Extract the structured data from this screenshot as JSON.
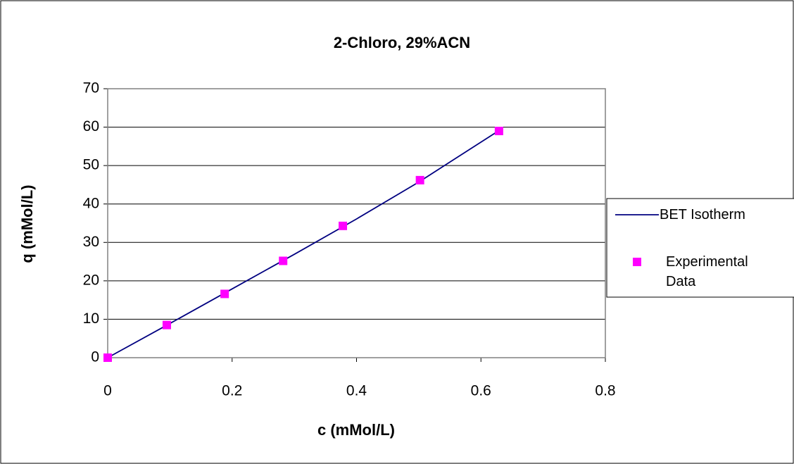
{
  "chart_data": {
    "type": "line",
    "title": "2-Chloro, 29%ACN",
    "x_label": "c (mMol/L)",
    "y_label": "q (mMol/L)",
    "series": [
      {
        "name": "BET Isotherm",
        "color": "#000080",
        "style": "line",
        "x": [
          0,
          0.1,
          0.2,
          0.3,
          0.4,
          0.5,
          0.628
        ],
        "values": [
          0,
          8.9,
          17.9,
          26.9,
          36.1,
          45.7,
          59
        ]
      },
      {
        "name": "Experimental Data",
        "color": "#ff00ff",
        "style": "marker",
        "x": [
          0,
          0.095,
          0.188,
          0.282,
          0.378,
          0.502,
          0.629
        ],
        "values": [
          0,
          8.5,
          16.6,
          25.2,
          34.3,
          46.2,
          59
        ]
      }
    ],
    "xlim": [
      0,
      0.8
    ],
    "xticks": [
      0,
      0.2,
      0.4,
      0.6,
      0.8
    ],
    "ylim": [
      0,
      70
    ],
    "yticks": [
      0,
      10,
      20,
      30,
      40,
      50,
      60,
      70
    ],
    "grid": true,
    "legend": "right"
  }
}
